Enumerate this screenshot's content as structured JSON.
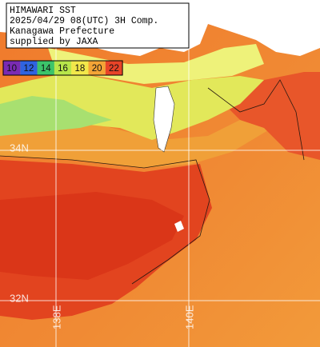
{
  "header": {
    "lines": [
      "HIMAWARI SST",
      "2025/04/29 08(UTC) 3H Comp.",
      "Kanagawa Prefecture",
      "supplied by JAXA"
    ]
  },
  "colorbar": [
    {
      "label": 10,
      "color": "#7a2bb3"
    },
    {
      "label": 12,
      "color": "#2f63e0"
    },
    {
      "label": 14,
      "color": "#3cc46a"
    },
    {
      "label": 16,
      "color": "#b8e64a"
    },
    {
      "label": 18,
      "color": "#f2e84a"
    },
    {
      "label": 20,
      "color": "#f4a436"
    },
    {
      "label": 22,
      "color": "#e84428"
    }
  ],
  "grid": {
    "latitudes": [
      "34N",
      "32N"
    ],
    "longitudes": [
      "138E",
      "140E"
    ]
  }
}
